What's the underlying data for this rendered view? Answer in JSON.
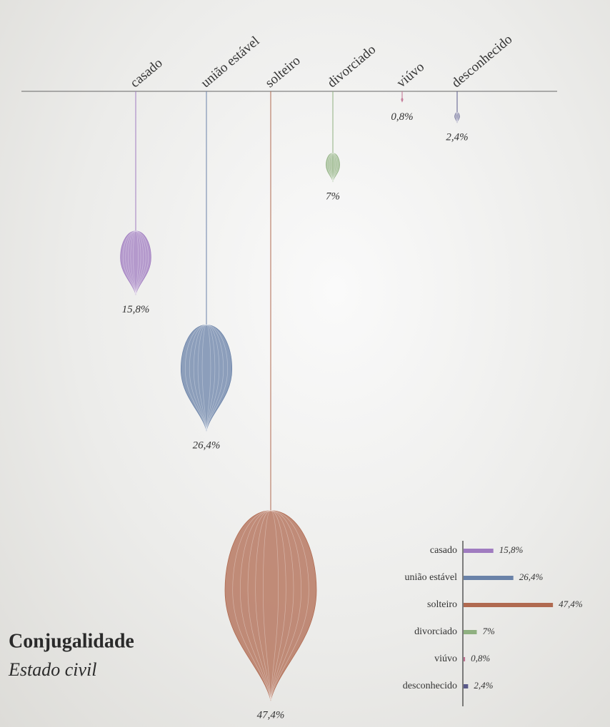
{
  "chart_data": {
    "type": "pendant",
    "title": "Conjugalidade",
    "subtitle": "Estado civil",
    "categories": [
      "casado",
      "união estável",
      "solteiro",
      "divorciado",
      "viúvo",
      "desconhecido"
    ],
    "values": [
      15.8,
      26.4,
      47.4,
      7,
      0.8,
      2.4
    ],
    "value_labels": [
      "15,8%",
      "26,4%",
      "47,4%",
      "7%",
      "0,8%",
      "2,4%"
    ],
    "colors": [
      "#a07cc0",
      "#6a82a8",
      "#b06a50",
      "#8fb080",
      "#c07090",
      "#5a5a8a"
    ]
  }
}
